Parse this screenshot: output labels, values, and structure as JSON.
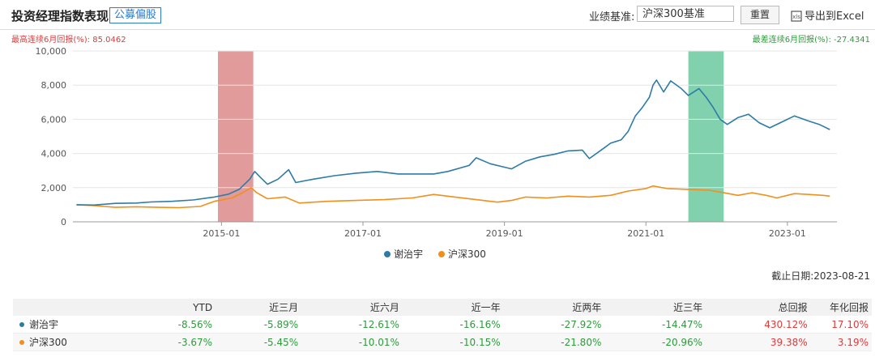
{
  "header": {
    "title": "投资经理指数表现",
    "tag": "公募偏股",
    "benchmark_label": "业绩基准:",
    "benchmark_value": "沪深300基准",
    "reset_label": "重置",
    "export_label": "导出到Excel"
  },
  "stats": {
    "max_label": "最高连续6月回报(%):",
    "max_value": "85.0462",
    "min_label": "最差连续6月回报(%):",
    "min_value": "-27.4341"
  },
  "footer": {
    "date_label": "截止日期:",
    "date_value": "2023-08-21"
  },
  "colors": {
    "series1": "#2d7ba6",
    "series2": "#f0901c",
    "red_band": "#dc8a8a",
    "green_band": "#6cc9a0"
  },
  "chart_data": {
    "type": "line",
    "x_ticks": [
      "2015-01",
      "2017-01",
      "2019-01",
      "2021-01",
      "2023-01"
    ],
    "y_ticks": [
      "0",
      "2,000",
      "4,000",
      "6,000",
      "8,000",
      "10,000"
    ],
    "ylim": [
      0,
      10000
    ],
    "xlim": [
      2012.9,
      2023.7
    ],
    "grid": "horizontal",
    "legend": "bottom-center",
    "shaded_periods": [
      {
        "color": "red",
        "x0": 2014.95,
        "x1": 2015.45
      },
      {
        "color": "green",
        "x0": 2021.6,
        "x1": 2022.1
      }
    ],
    "series": [
      {
        "name": "谢治宇",
        "points": [
          [
            2012.95,
            1000
          ],
          [
            2013.2,
            980
          ],
          [
            2013.5,
            1080
          ],
          [
            2013.8,
            1100
          ],
          [
            2014.0,
            1160
          ],
          [
            2014.3,
            1200
          ],
          [
            2014.6,
            1280
          ],
          [
            2014.9,
            1450
          ],
          [
            2015.1,
            1620
          ],
          [
            2015.25,
            1900
          ],
          [
            2015.4,
            2500
          ],
          [
            2015.47,
            2950
          ],
          [
            2015.55,
            2600
          ],
          [
            2015.65,
            2200
          ],
          [
            2015.8,
            2500
          ],
          [
            2015.95,
            3050
          ],
          [
            2016.05,
            2300
          ],
          [
            2016.3,
            2500
          ],
          [
            2016.6,
            2700
          ],
          [
            2016.9,
            2850
          ],
          [
            2017.2,
            2950
          ],
          [
            2017.5,
            2800
          ],
          [
            2017.8,
            2800
          ],
          [
            2018.0,
            2800
          ],
          [
            2018.2,
            2950
          ],
          [
            2018.5,
            3300
          ],
          [
            2018.6,
            3750
          ],
          [
            2018.8,
            3400
          ],
          [
            2019.0,
            3200
          ],
          [
            2019.1,
            3100
          ],
          [
            2019.3,
            3550
          ],
          [
            2019.5,
            3800
          ],
          [
            2019.7,
            3950
          ],
          [
            2019.9,
            4150
          ],
          [
            2020.1,
            4200
          ],
          [
            2020.2,
            3700
          ],
          [
            2020.4,
            4300
          ],
          [
            2020.5,
            4600
          ],
          [
            2020.65,
            4800
          ],
          [
            2020.75,
            5300
          ],
          [
            2020.85,
            6200
          ],
          [
            2020.95,
            6700
          ],
          [
            2021.05,
            7300
          ],
          [
            2021.1,
            8000
          ],
          [
            2021.15,
            8300
          ],
          [
            2021.25,
            7600
          ],
          [
            2021.35,
            8250
          ],
          [
            2021.5,
            7800
          ],
          [
            2021.6,
            7400
          ],
          [
            2021.75,
            7800
          ],
          [
            2021.85,
            7300
          ],
          [
            2021.95,
            6700
          ],
          [
            2022.05,
            6000
          ],
          [
            2022.15,
            5700
          ],
          [
            2022.3,
            6100
          ],
          [
            2022.45,
            6300
          ],
          [
            2022.6,
            5800
          ],
          [
            2022.75,
            5500
          ],
          [
            2022.9,
            5800
          ],
          [
            2023.1,
            6200
          ],
          [
            2023.3,
            5900
          ],
          [
            2023.45,
            5700
          ],
          [
            2023.6,
            5400
          ]
        ]
      },
      {
        "name": "沪深300",
        "points": [
          [
            2012.95,
            1000
          ],
          [
            2013.2,
            950
          ],
          [
            2013.5,
            850
          ],
          [
            2013.8,
            880
          ],
          [
            2014.1,
            850
          ],
          [
            2014.4,
            830
          ],
          [
            2014.7,
            900
          ],
          [
            2014.9,
            1200
          ],
          [
            2015.15,
            1400
          ],
          [
            2015.3,
            1700
          ],
          [
            2015.42,
            2000
          ],
          [
            2015.5,
            1700
          ],
          [
            2015.65,
            1350
          ],
          [
            2015.9,
            1450
          ],
          [
            2016.1,
            1100
          ],
          [
            2016.5,
            1200
          ],
          [
            2016.9,
            1250
          ],
          [
            2017.3,
            1300
          ],
          [
            2017.7,
            1400
          ],
          [
            2018.0,
            1600
          ],
          [
            2018.3,
            1450
          ],
          [
            2018.6,
            1300
          ],
          [
            2018.9,
            1150
          ],
          [
            2019.1,
            1250
          ],
          [
            2019.3,
            1450
          ],
          [
            2019.6,
            1400
          ],
          [
            2019.9,
            1500
          ],
          [
            2020.2,
            1450
          ],
          [
            2020.5,
            1550
          ],
          [
            2020.75,
            1800
          ],
          [
            2021.0,
            1950
          ],
          [
            2021.1,
            2100
          ],
          [
            2021.3,
            1950
          ],
          [
            2021.6,
            1900
          ],
          [
            2021.9,
            1850
          ],
          [
            2022.1,
            1700
          ],
          [
            2022.3,
            1550
          ],
          [
            2022.5,
            1700
          ],
          [
            2022.7,
            1550
          ],
          [
            2022.85,
            1400
          ],
          [
            2023.1,
            1650
          ],
          [
            2023.3,
            1600
          ],
          [
            2023.5,
            1550
          ],
          [
            2023.6,
            1500
          ]
        ]
      }
    ]
  },
  "table": {
    "headers": [
      "",
      "YTD",
      "近三月",
      "近六月",
      "近一年",
      "近两年",
      "近三年",
      "总回报",
      "年化回报"
    ],
    "rows": [
      {
        "name": "谢治宇",
        "values": [
          "-8.56%",
          "-5.89%",
          "-12.61%",
          "-16.16%",
          "-27.92%",
          "-14.47%",
          "430.12%",
          "17.10%"
        ]
      },
      {
        "name": "沪深300",
        "values": [
          "-3.67%",
          "-5.45%",
          "-10.01%",
          "-10.15%",
          "-21.80%",
          "-20.96%",
          "39.38%",
          "3.19%"
        ]
      }
    ]
  }
}
